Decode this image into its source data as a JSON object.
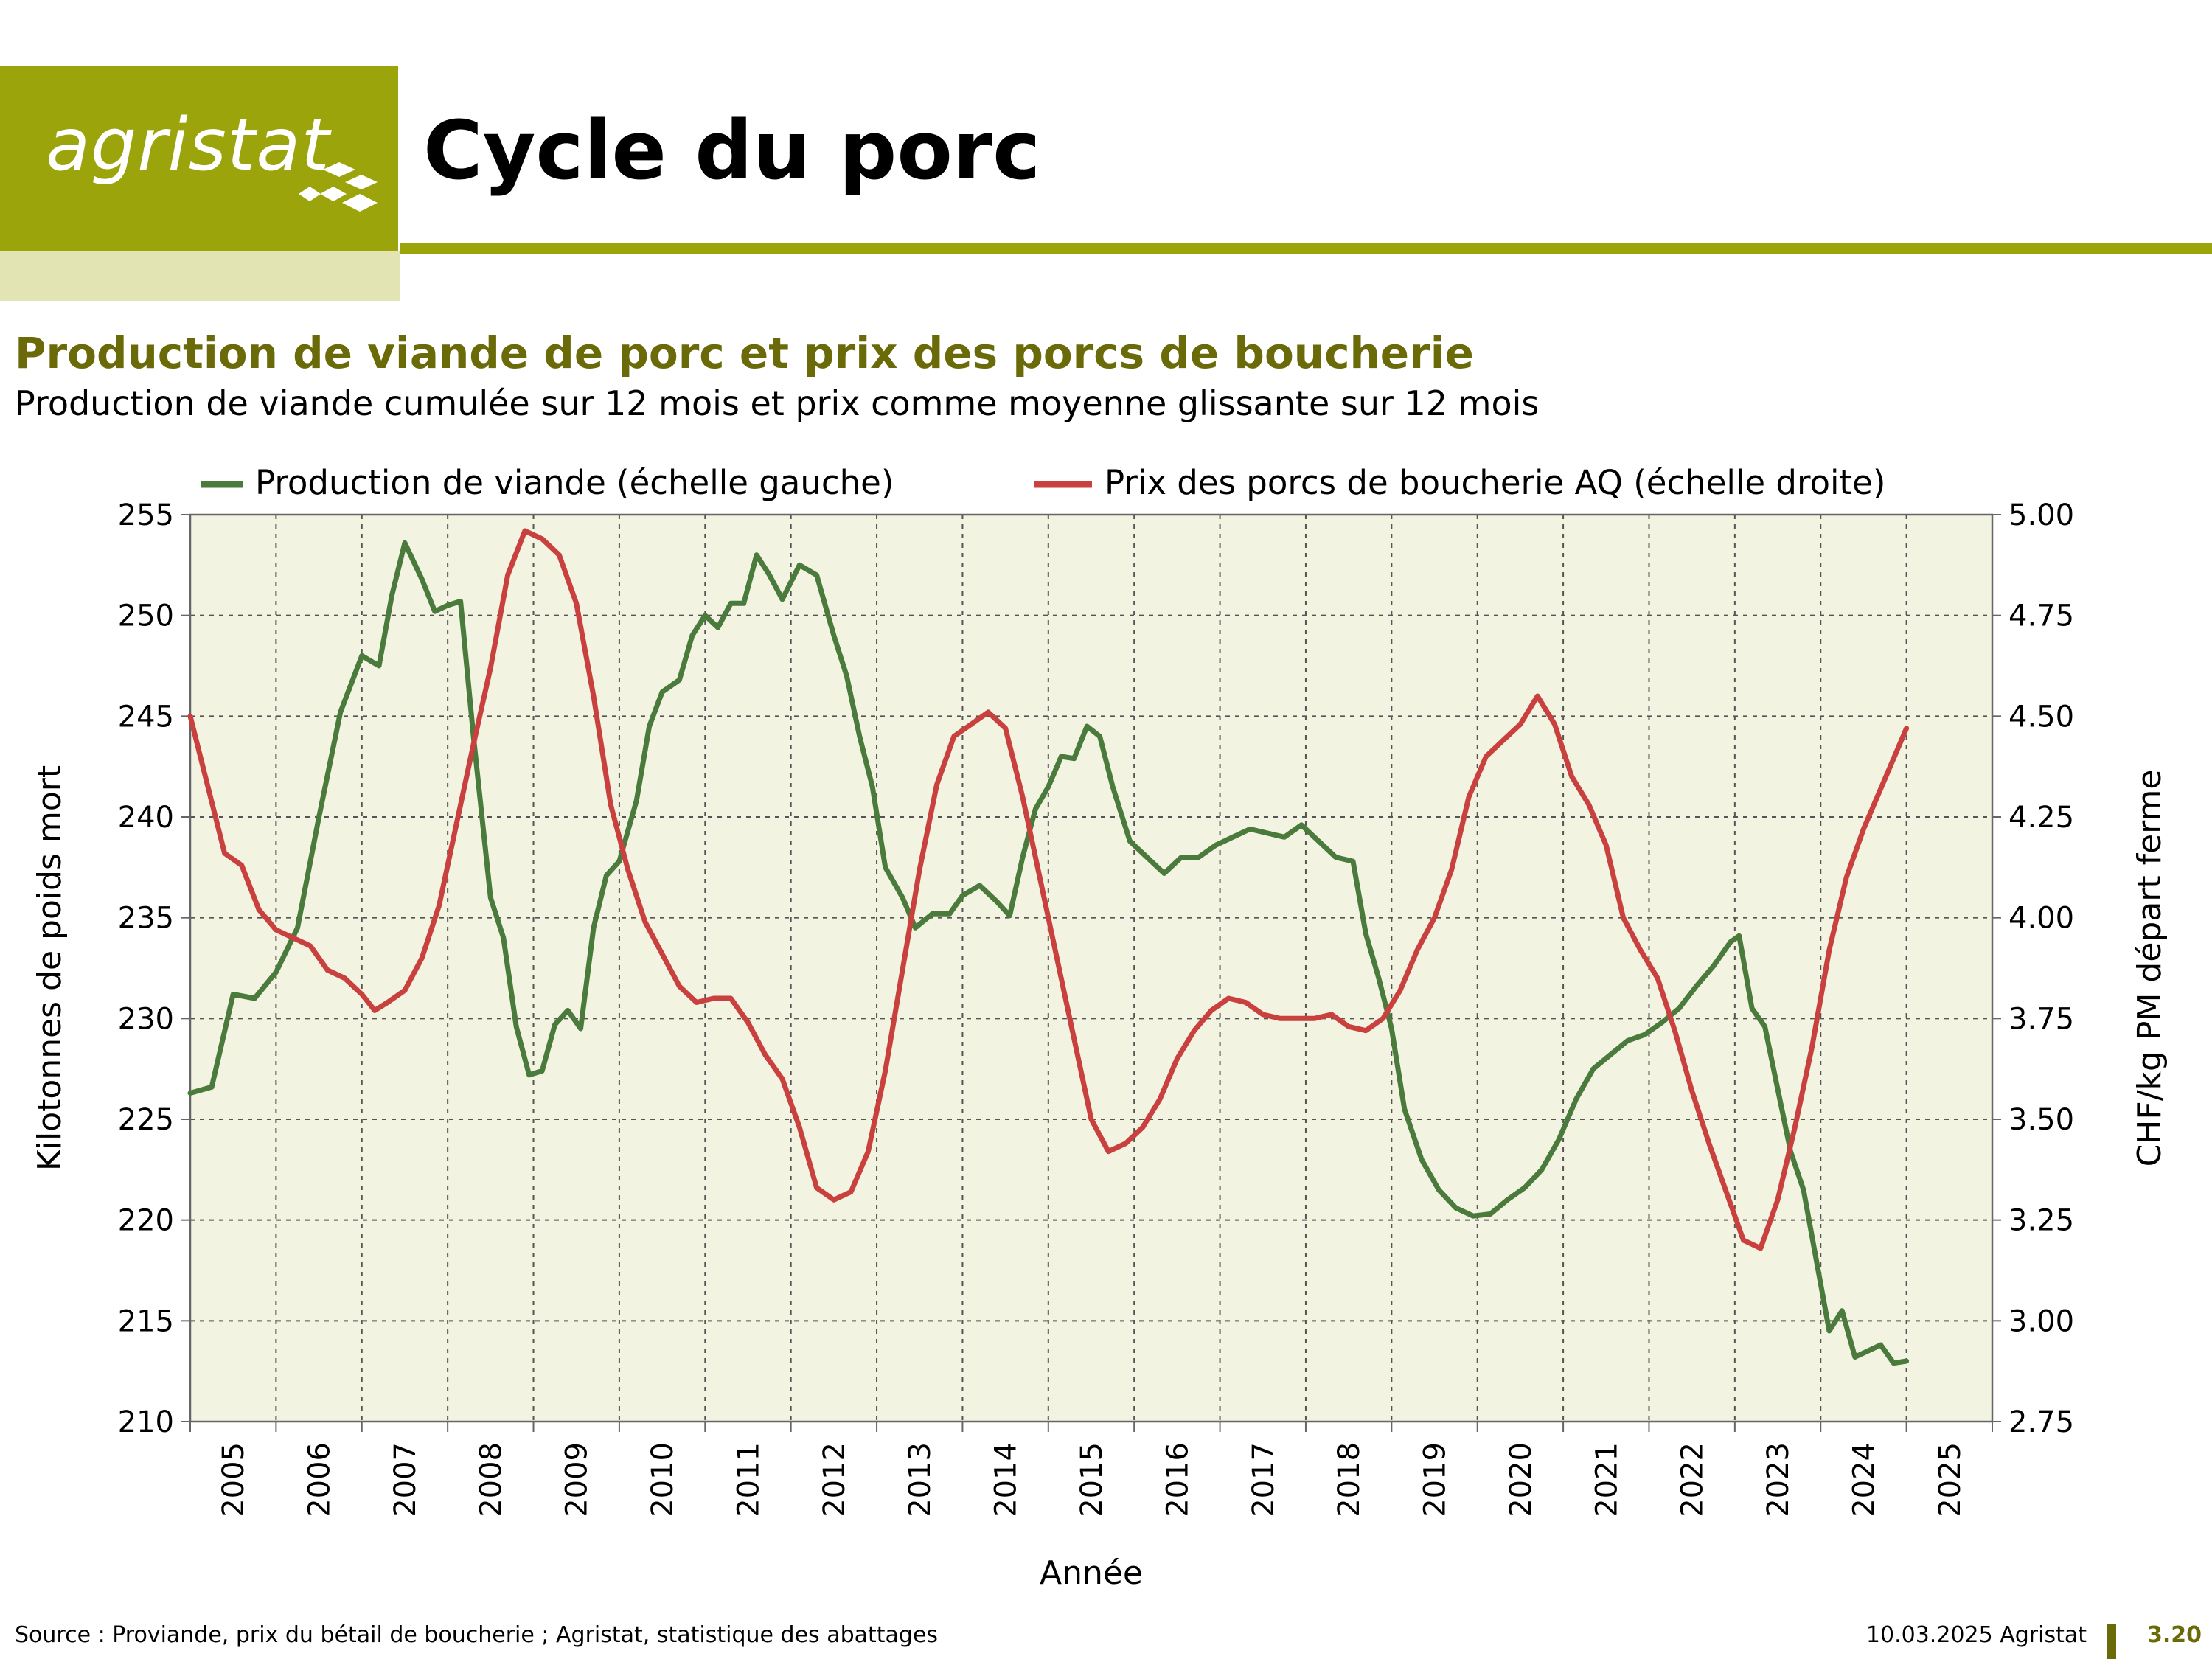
{
  "logo": {
    "text": "agristat"
  },
  "header": {
    "title": "Cycle du porc"
  },
  "footer": {
    "source": "Source : Proviande, prix du bétail de boucherie ; Agristat, statistique des abattages",
    "date": "10.03.2025 Agristat",
    "page": "3.20"
  },
  "colors": {
    "brand_olive": "#9ba40a",
    "brand_light": "#e2e5b3",
    "title_olive": "#6b6a08",
    "production_line": "#4a7a3c",
    "price_line": "#c9413f",
    "plot_bg": "#f3f3e2"
  },
  "chart_data": {
    "type": "line",
    "title": "Production de viande de porc et prix des porcs de boucherie",
    "subtitle": "Production de viande cumulée sur 12 mois et prix comme moyenne glissante sur 12 mois",
    "xlabel": "Année",
    "ylabel_left": "Kilotonnes de poids mort",
    "ylabel_right": "CHF/kg PM départ ferme",
    "x_ticks": [
      "2005",
      "2006",
      "2007",
      "2008",
      "2009",
      "2010",
      "2011",
      "2012",
      "2013",
      "2014",
      "2015",
      "2016",
      "2017",
      "2018",
      "2019",
      "2020",
      "2021",
      "2022",
      "2023",
      "2024",
      "2025"
    ],
    "ylim_left": [
      210,
      255
    ],
    "yticks_left": [
      210,
      215,
      220,
      225,
      230,
      235,
      240,
      245,
      250,
      255
    ],
    "ylim_right": [
      2.75,
      5.0
    ],
    "yticks_right": [
      "2.75",
      "3.00",
      "3.25",
      "3.50",
      "3.75",
      "4.00",
      "4.25",
      "4.50",
      "4.75",
      "5.00"
    ],
    "xlim": [
      2005.0,
      2026.0
    ],
    "grid": true,
    "legend": "top",
    "series": [
      {
        "name": "Production de viande (échelle gauche)",
        "axis": "left",
        "points": [
          [
            2005.0,
            226.3
          ],
          [
            2005.25,
            226.6
          ],
          [
            2005.5,
            231.2
          ],
          [
            2005.75,
            231.0
          ],
          [
            2006.0,
            232.3
          ],
          [
            2006.25,
            234.5
          ],
          [
            2006.5,
            240.0
          ],
          [
            2006.75,
            245.2
          ],
          [
            2007.0,
            248.0
          ],
          [
            2007.2,
            247.5
          ],
          [
            2007.35,
            251.0
          ],
          [
            2007.5,
            253.6
          ],
          [
            2007.7,
            251.8
          ],
          [
            2007.85,
            250.2
          ],
          [
            2008.0,
            250.5
          ],
          [
            2008.15,
            250.7
          ],
          [
            2008.3,
            244.0
          ],
          [
            2008.5,
            236.0
          ],
          [
            2008.65,
            234.0
          ],
          [
            2008.8,
            229.6
          ],
          [
            2008.95,
            227.2
          ],
          [
            2009.1,
            227.4
          ],
          [
            2009.25,
            229.7
          ],
          [
            2009.4,
            230.4
          ],
          [
            2009.55,
            229.5
          ],
          [
            2009.7,
            234.5
          ],
          [
            2009.85,
            237.1
          ],
          [
            2010.0,
            237.8
          ],
          [
            2010.2,
            240.8
          ],
          [
            2010.35,
            244.5
          ],
          [
            2010.5,
            246.2
          ],
          [
            2010.7,
            246.8
          ],
          [
            2010.85,
            249.0
          ],
          [
            2011.0,
            250.0
          ],
          [
            2011.15,
            249.4
          ],
          [
            2011.3,
            250.6
          ],
          [
            2011.45,
            250.6
          ],
          [
            2011.6,
            253.0
          ],
          [
            2011.75,
            252.0
          ],
          [
            2011.9,
            250.8
          ],
          [
            2012.1,
            252.5
          ],
          [
            2012.3,
            252.0
          ],
          [
            2012.5,
            249.0
          ],
          [
            2012.65,
            247.0
          ],
          [
            2012.8,
            244.0
          ],
          [
            2012.95,
            241.5
          ],
          [
            2013.1,
            237.5
          ],
          [
            2013.3,
            236.0
          ],
          [
            2013.45,
            234.5
          ],
          [
            2013.65,
            235.2
          ],
          [
            2013.85,
            235.2
          ],
          [
            2014.0,
            236.1
          ],
          [
            2014.2,
            236.6
          ],
          [
            2014.4,
            235.8
          ],
          [
            2014.55,
            235.1
          ],
          [
            2014.7,
            238.0
          ],
          [
            2014.85,
            240.4
          ],
          [
            2015.0,
            241.5
          ],
          [
            2015.15,
            243.0
          ],
          [
            2015.3,
            242.9
          ],
          [
            2015.45,
            244.5
          ],
          [
            2015.6,
            244.0
          ],
          [
            2015.75,
            241.5
          ],
          [
            2015.95,
            238.8
          ],
          [
            2016.15,
            238.0
          ],
          [
            2016.35,
            237.2
          ],
          [
            2016.55,
            238.0
          ],
          [
            2016.75,
            238.0
          ],
          [
            2016.95,
            238.6
          ],
          [
            2017.15,
            239.0
          ],
          [
            2017.35,
            239.4
          ],
          [
            2017.55,
            239.2
          ],
          [
            2017.75,
            239.0
          ],
          [
            2017.95,
            239.6
          ],
          [
            2018.15,
            238.8
          ],
          [
            2018.35,
            238.0
          ],
          [
            2018.55,
            237.8
          ],
          [
            2018.7,
            234.2
          ],
          [
            2018.85,
            232.0
          ],
          [
            2019.0,
            229.5
          ],
          [
            2019.15,
            225.5
          ],
          [
            2019.35,
            223.0
          ],
          [
            2019.55,
            221.5
          ],
          [
            2019.75,
            220.6
          ],
          [
            2019.95,
            220.2
          ],
          [
            2020.15,
            220.3
          ],
          [
            2020.35,
            221.0
          ],
          [
            2020.55,
            221.6
          ],
          [
            2020.75,
            222.5
          ],
          [
            2020.95,
            224.0
          ],
          [
            2021.15,
            226.0
          ],
          [
            2021.35,
            227.5
          ],
          [
            2021.55,
            228.2
          ],
          [
            2021.75,
            228.9
          ],
          [
            2021.95,
            229.2
          ],
          [
            2022.15,
            229.8
          ],
          [
            2022.35,
            230.5
          ],
          [
            2022.55,
            231.6
          ],
          [
            2022.75,
            232.6
          ],
          [
            2022.95,
            233.8
          ],
          [
            2023.05,
            234.1
          ],
          [
            2023.2,
            230.5
          ],
          [
            2023.35,
            229.6
          ],
          [
            2023.5,
            226.5
          ],
          [
            2023.65,
            223.4
          ],
          [
            2023.8,
            221.5
          ],
          [
            2023.95,
            218.0
          ],
          [
            2024.1,
            214.5
          ],
          [
            2024.25,
            215.5
          ],
          [
            2024.4,
            213.2
          ],
          [
            2024.55,
            213.5
          ],
          [
            2024.7,
            213.8
          ],
          [
            2024.85,
            212.9
          ],
          [
            2025.0,
            213.0
          ]
        ]
      },
      {
        "name": "Prix des porcs de boucherie AQ (échelle droite)",
        "axis": "right",
        "points": [
          [
            2005.0,
            4.5
          ],
          [
            2005.2,
            4.33
          ],
          [
            2005.4,
            4.16
          ],
          [
            2005.6,
            4.13
          ],
          [
            2005.8,
            4.02
          ],
          [
            2006.0,
            3.97
          ],
          [
            2006.2,
            3.95
          ],
          [
            2006.4,
            3.93
          ],
          [
            2006.6,
            3.87
          ],
          [
            2006.8,
            3.85
          ],
          [
            2007.0,
            3.81
          ],
          [
            2007.15,
            3.77
          ],
          [
            2007.3,
            3.79
          ],
          [
            2007.5,
            3.82
          ],
          [
            2007.7,
            3.9
          ],
          [
            2007.9,
            4.03
          ],
          [
            2008.1,
            4.23
          ],
          [
            2008.3,
            4.43
          ],
          [
            2008.5,
            4.62
          ],
          [
            2008.7,
            4.85
          ],
          [
            2008.9,
            4.96
          ],
          [
            2009.1,
            4.94
          ],
          [
            2009.3,
            4.9
          ],
          [
            2009.5,
            4.78
          ],
          [
            2009.7,
            4.55
          ],
          [
            2009.9,
            4.28
          ],
          [
            2010.1,
            4.12
          ],
          [
            2010.3,
            3.99
          ],
          [
            2010.5,
            3.91
          ],
          [
            2010.7,
            3.83
          ],
          [
            2010.9,
            3.79
          ],
          [
            2011.1,
            3.8
          ],
          [
            2011.3,
            3.8
          ],
          [
            2011.5,
            3.74
          ],
          [
            2011.7,
            3.66
          ],
          [
            2011.9,
            3.6
          ],
          [
            2012.1,
            3.48
          ],
          [
            2012.3,
            3.33
          ],
          [
            2012.5,
            3.3
          ],
          [
            2012.7,
            3.32
          ],
          [
            2012.9,
            3.42
          ],
          [
            2013.1,
            3.62
          ],
          [
            2013.3,
            3.87
          ],
          [
            2013.5,
            4.12
          ],
          [
            2013.7,
            4.33
          ],
          [
            2013.9,
            4.45
          ],
          [
            2014.1,
            4.48
          ],
          [
            2014.3,
            4.51
          ],
          [
            2014.5,
            4.47
          ],
          [
            2014.7,
            4.3
          ],
          [
            2014.9,
            4.1
          ],
          [
            2015.1,
            3.9
          ],
          [
            2015.3,
            3.7
          ],
          [
            2015.5,
            3.5
          ],
          [
            2015.7,
            3.42
          ],
          [
            2015.9,
            3.44
          ],
          [
            2016.1,
            3.48
          ],
          [
            2016.3,
            3.55
          ],
          [
            2016.5,
            3.65
          ],
          [
            2016.7,
            3.72
          ],
          [
            2016.9,
            3.77
          ],
          [
            2017.1,
            3.8
          ],
          [
            2017.3,
            3.79
          ],
          [
            2017.5,
            3.76
          ],
          [
            2017.7,
            3.75
          ],
          [
            2017.9,
            3.75
          ],
          [
            2018.1,
            3.75
          ],
          [
            2018.3,
            3.76
          ],
          [
            2018.5,
            3.73
          ],
          [
            2018.7,
            3.72
          ],
          [
            2018.9,
            3.75
          ],
          [
            2019.1,
            3.82
          ],
          [
            2019.3,
            3.92
          ],
          [
            2019.5,
            4.0
          ],
          [
            2019.7,
            4.12
          ],
          [
            2019.9,
            4.3
          ],
          [
            2020.1,
            4.4
          ],
          [
            2020.3,
            4.44
          ],
          [
            2020.5,
            4.48
          ],
          [
            2020.7,
            4.55
          ],
          [
            2020.9,
            4.48
          ],
          [
            2021.1,
            4.35
          ],
          [
            2021.3,
            4.28
          ],
          [
            2021.5,
            4.18
          ],
          [
            2021.7,
            4.0
          ],
          [
            2021.9,
            3.92
          ],
          [
            2022.1,
            3.85
          ],
          [
            2022.3,
            3.72
          ],
          [
            2022.5,
            3.57
          ],
          [
            2022.7,
            3.44
          ],
          [
            2022.9,
            3.32
          ],
          [
            2023.1,
            3.2
          ],
          [
            2023.3,
            3.18
          ],
          [
            2023.5,
            3.3
          ],
          [
            2023.7,
            3.48
          ],
          [
            2023.9,
            3.68
          ],
          [
            2024.1,
            3.92
          ],
          [
            2024.3,
            4.1
          ],
          [
            2024.5,
            4.22
          ],
          [
            2024.7,
            4.32
          ],
          [
            2024.9,
            4.42
          ],
          [
            2025.0,
            4.47
          ]
        ]
      }
    ]
  }
}
